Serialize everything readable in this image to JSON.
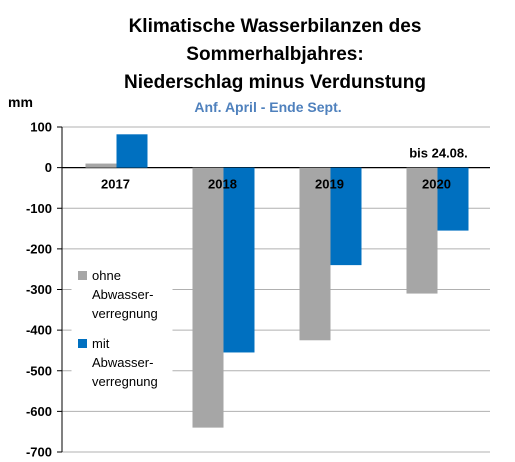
{
  "chart_data": {
    "type": "bar",
    "title_lines": [
      "Klimatische Wasserbilanzen des",
      "Sommerhalbjahres:",
      "Niederschlag minus Verdunstung"
    ],
    "subtitle": "Anf. April - Ende Sept.",
    "ylabel": "mm",
    "xlabel": "",
    "ylim": [
      -700,
      100
    ],
    "yticks": [
      100,
      0,
      -100,
      -200,
      -300,
      -400,
      -500,
      -600,
      -700
    ],
    "grid": true,
    "categories": [
      "2017",
      "2018",
      "2019",
      "2020"
    ],
    "series": [
      {
        "name_lines": [
          "ohne",
          "Abwasser-",
          "verregnung"
        ],
        "color": "#a6a6a6",
        "values": [
          10,
          -640,
          -425,
          -310
        ]
      },
      {
        "name_lines": [
          "mit",
          "Abwasser-",
          "verregnung"
        ],
        "color": "#0070c0",
        "values": [
          82,
          -455,
          -240,
          -155
        ]
      }
    ],
    "annotations": [
      {
        "category": "2020",
        "text": "bis 24.08."
      }
    ],
    "legend_position": "bottom-left"
  }
}
